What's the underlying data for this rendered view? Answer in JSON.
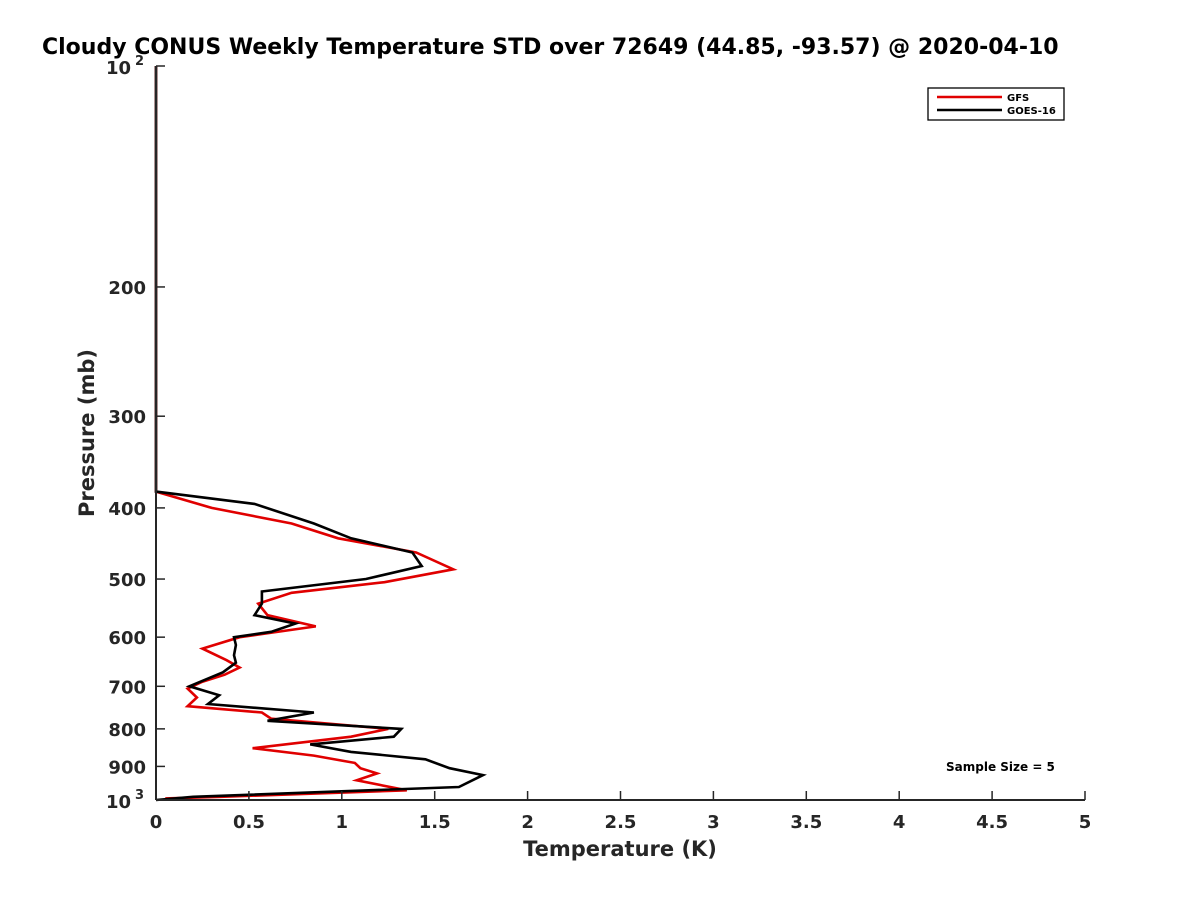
{
  "chart_data": {
    "type": "line",
    "title": "Cloudy CONUS Weekly Temperature STD over 72649 (44.85, -93.57) @ 2020-04-10",
    "xlabel": "Temperature (K)",
    "ylabel": "Pressure (mb)",
    "xlim": [
      0,
      5
    ],
    "ylim": [
      100,
      1000
    ],
    "yscale": "log",
    "y_reversed": true,
    "grid": false,
    "legend_position": "top-right",
    "x_ticks": [
      "0",
      "0.5",
      "1",
      "1.5",
      "2",
      "2.5",
      "3",
      "3.5",
      "4",
      "4.5",
      "5"
    ],
    "y_ticks": [
      {
        "value": 100,
        "label": "10",
        "exp": "2"
      },
      {
        "value": 200,
        "label": "200"
      },
      {
        "value": 300,
        "label": "300"
      },
      {
        "value": 400,
        "label": "400"
      },
      {
        "value": 500,
        "label": "500"
      },
      {
        "value": 600,
        "label": "600"
      },
      {
        "value": 700,
        "label": "700"
      },
      {
        "value": 800,
        "label": "800"
      },
      {
        "value": 900,
        "label": "900"
      },
      {
        "value": 1000,
        "label": "10",
        "exp": "3"
      }
    ],
    "series": [
      {
        "name": "GFS",
        "color": "#e00000",
        "points": [
          [
            0,
            100
          ],
          [
            0,
            380
          ],
          [
            0.3,
            400
          ],
          [
            0.73,
            420
          ],
          [
            0.98,
            440
          ],
          [
            1.4,
            460
          ],
          [
            1.6,
            485
          ],
          [
            1.23,
            505
          ],
          [
            0.73,
            522
          ],
          [
            0.55,
            540
          ],
          [
            0.6,
            560
          ],
          [
            0.86,
            580
          ],
          [
            0.45,
            600
          ],
          [
            0.25,
            622
          ],
          [
            0.38,
            645
          ],
          [
            0.45,
            660
          ],
          [
            0.37,
            675
          ],
          [
            0.25,
            690
          ],
          [
            0.17,
            705
          ],
          [
            0.22,
            725
          ],
          [
            0.17,
            745
          ],
          [
            0.57,
            760
          ],
          [
            0.62,
            775
          ],
          [
            1.25,
            800
          ],
          [
            1.05,
            820
          ],
          [
            0.52,
            850
          ],
          [
            0.85,
            870
          ],
          [
            1.07,
            890
          ],
          [
            1.1,
            905
          ],
          [
            1.19,
            920
          ],
          [
            1.08,
            940
          ],
          [
            1.35,
            970
          ],
          [
            0.35,
            990
          ],
          [
            0.05,
            995
          ]
        ]
      },
      {
        "name": "GOES-16",
        "color": "#000000",
        "points": [
          [
            0,
            100
          ],
          [
            0,
            380
          ],
          [
            0.53,
            395
          ],
          [
            0.85,
            420
          ],
          [
            1.05,
            440
          ],
          [
            1.38,
            460
          ],
          [
            1.43,
            480
          ],
          [
            1.13,
            500
          ],
          [
            0.57,
            520
          ],
          [
            0.57,
            540
          ],
          [
            0.53,
            560
          ],
          [
            0.75,
            575
          ],
          [
            0.62,
            590
          ],
          [
            0.42,
            600
          ],
          [
            0.43,
            615
          ],
          [
            0.42,
            635
          ],
          [
            0.43,
            650
          ],
          [
            0.36,
            670
          ],
          [
            0.18,
            700
          ],
          [
            0.34,
            720
          ],
          [
            0.28,
            740
          ],
          [
            0.85,
            760
          ],
          [
            0.6,
            780
          ],
          [
            1.32,
            800
          ],
          [
            1.28,
            820
          ],
          [
            0.83,
            840
          ],
          [
            1.05,
            860
          ],
          [
            1.45,
            880
          ],
          [
            1.58,
            905
          ],
          [
            1.76,
            925
          ],
          [
            1.63,
            960
          ],
          [
            0.2,
            990
          ],
          [
            0,
            1000
          ]
        ]
      }
    ],
    "annotation": "Sample Size = 5"
  }
}
